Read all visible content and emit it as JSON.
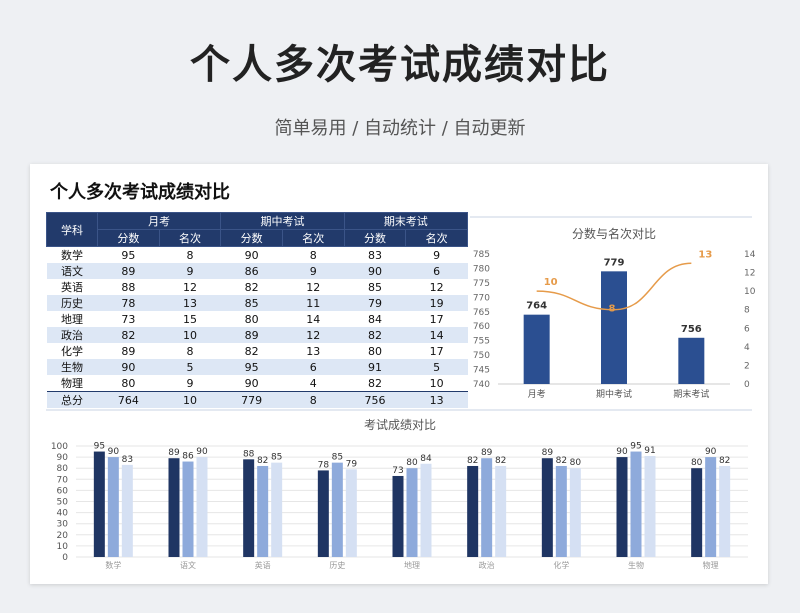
{
  "page": {
    "title": "个人多次考试成绩对比",
    "subtitle": "简单易用 / 自动统计 / 自动更新"
  },
  "sheet": {
    "title": "个人多次考试成绩对比",
    "col_subject": "学科",
    "exams": [
      "月考",
      "期中考试",
      "期末考试"
    ],
    "sub_headers": [
      "分数",
      "名次",
      "分数",
      "名次",
      "分数",
      "名次"
    ],
    "rows": [
      {
        "subject": "数学",
        "cells": [
          "95",
          "8",
          "90",
          "8",
          "83",
          "9"
        ]
      },
      {
        "subject": "语文",
        "cells": [
          "89",
          "9",
          "86",
          "9",
          "90",
          "6"
        ]
      },
      {
        "subject": "英语",
        "cells": [
          "88",
          "12",
          "82",
          "12",
          "85",
          "12"
        ]
      },
      {
        "subject": "历史",
        "cells": [
          "78",
          "13",
          "85",
          "11",
          "79",
          "19"
        ]
      },
      {
        "subject": "地理",
        "cells": [
          "73",
          "15",
          "80",
          "14",
          "84",
          "17"
        ]
      },
      {
        "subject": "政治",
        "cells": [
          "82",
          "10",
          "89",
          "12",
          "82",
          "14"
        ]
      },
      {
        "subject": "化学",
        "cells": [
          "89",
          "8",
          "82",
          "13",
          "80",
          "17"
        ]
      },
      {
        "subject": "生物",
        "cells": [
          "90",
          "5",
          "95",
          "6",
          "91",
          "5"
        ]
      },
      {
        "subject": "物理",
        "cells": [
          "80",
          "9",
          "90",
          "4",
          "82",
          "10"
        ]
      }
    ],
    "total": {
      "subject": "总分",
      "cells": [
        "764",
        "10",
        "779",
        "8",
        "756",
        "13"
      ]
    }
  },
  "chart_data": [
    {
      "type": "bar",
      "title": "分数与名次对比",
      "categories": [
        "月考",
        "期中考试",
        "期末考试"
      ],
      "series": [
        {
          "type": "bar",
          "values": [
            764,
            779,
            756
          ],
          "color": "#2b4f91",
          "axis": "left"
        },
        {
          "type": "line",
          "values": [
            10,
            8,
            13
          ],
          "color": "#e69b4a",
          "axis": "right"
        }
      ],
      "ylim_left": [
        740,
        785
      ],
      "yticks_left": [
        740,
        745,
        750,
        755,
        760,
        765,
        770,
        775,
        780,
        785
      ],
      "ylim_right": [
        0,
        14
      ],
      "yticks_right": [
        0,
        2,
        4,
        6,
        8,
        10,
        12,
        14
      ],
      "grid": false
    },
    {
      "type": "bar",
      "title": "考试成绩对比",
      "categories": [
        "数学",
        "语文",
        "英语",
        "历史",
        "地理",
        "政治",
        "化学",
        "生物",
        "物理"
      ],
      "series": [
        {
          "values": [
            95,
            89,
            88,
            78,
            73,
            82,
            89,
            90,
            80
          ],
          "color": "#1f3563"
        },
        {
          "values": [
            90,
            86,
            82,
            85,
            80,
            89,
            82,
            95,
            90
          ],
          "color": "#8eaadb"
        },
        {
          "values": [
            83,
            90,
            85,
            79,
            84,
            82,
            80,
            91,
            82
          ],
          "color": "#d5e0f3"
        }
      ],
      "ylim": [
        0,
        100
      ],
      "yticks": [
        0,
        10,
        20,
        30,
        40,
        50,
        60,
        70,
        80,
        90,
        100
      ],
      "grid": true
    }
  ]
}
